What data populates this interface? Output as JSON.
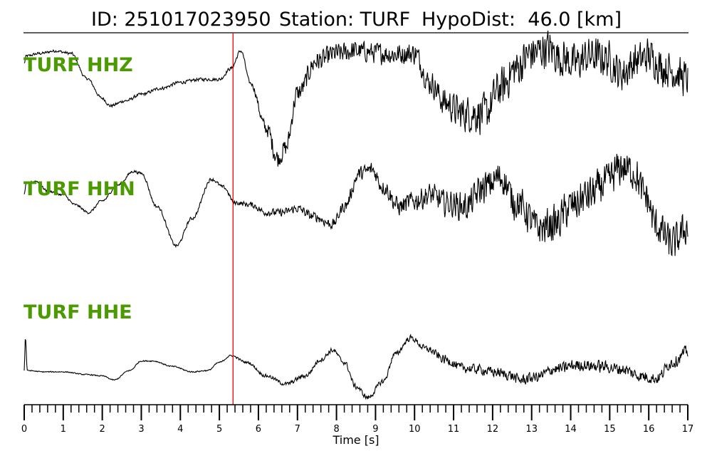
{
  "header": {
    "id_text": "ID: 251017023950",
    "station_text": "Station: TURF",
    "dist_text": "HypoDist:",
    "dist_value_text": "46.0 [km]"
  },
  "colors": {
    "trace": "#000000",
    "label": "#4a9a00",
    "pick": "#ff0000"
  },
  "chart_data": {
    "type": "line",
    "title": "ID: 251017023950   Station: TURF   HypoDist:    46.0 [km]",
    "xlabel": "Time [s]",
    "xlim": [
      0,
      17
    ],
    "major_ticks": [
      0,
      1,
      2,
      3,
      4,
      5,
      6,
      7,
      8,
      9,
      10,
      11,
      12,
      13,
      14,
      15,
      16,
      17
    ],
    "tick_labels": [
      "0",
      "1",
      "2",
      "3",
      "4",
      "5",
      "6",
      "7",
      "8",
      "9",
      "10",
      "11",
      "12",
      "13",
      "14",
      "15",
      "16",
      "17"
    ],
    "minor_tick_step": 0.2,
    "grid": false,
    "pick_time": 5.35,
    "series": [
      {
        "name": "TURF HHZ",
        "noise": [
          [
            0,
            0.03
          ],
          [
            5.8,
            0.04
          ],
          [
            6.3,
            0.22
          ],
          [
            7.5,
            0.22
          ],
          [
            10.3,
            0.25
          ],
          [
            11.5,
            0.45
          ],
          [
            17,
            0.4
          ]
        ],
        "x": [
          0,
          0.05,
          0.4,
          0.8,
          1.2,
          1.6,
          2.0,
          2.2,
          2.6,
          3.0,
          3.5,
          4.0,
          4.5,
          5.0,
          5.3,
          5.55,
          5.8,
          6.2,
          6.5,
          6.7,
          7.0,
          7.5,
          8.0,
          8.5,
          9.0,
          9.5,
          10.0,
          10.4,
          10.8,
          11.2,
          11.8,
          12.2,
          12.6,
          13.0,
          13.4,
          13.8,
          14.1,
          14.5,
          14.9,
          15.3,
          15.7,
          16.0,
          16.4,
          17.0
        ],
        "y": [
          0.7,
          0.85,
          0.9,
          0.95,
          0.9,
          0.4,
          0.0,
          -0.15,
          -0.05,
          0.08,
          0.2,
          0.32,
          0.38,
          0.38,
          0.6,
          0.95,
          0.3,
          -0.6,
          -1.2,
          -1.0,
          0.1,
          0.75,
          0.9,
          0.95,
          0.92,
          0.88,
          0.9,
          0.3,
          -0.1,
          -0.3,
          -0.3,
          0.2,
          0.6,
          0.9,
          1.0,
          0.8,
          0.7,
          0.85,
          0.8,
          0.5,
          0.75,
          0.85,
          0.6,
          0.4
        ]
      },
      {
        "name": "TURF HHN",
        "noise": [
          [
            0,
            0.03
          ],
          [
            5.2,
            0.05
          ],
          [
            6.2,
            0.1
          ],
          [
            8.0,
            0.15
          ],
          [
            10.0,
            0.3
          ],
          [
            11.8,
            0.45
          ],
          [
            14.5,
            0.55
          ],
          [
            17,
            0.5
          ]
        ],
        "x": [
          0,
          0.05,
          0.3,
          0.6,
          1.0,
          1.3,
          1.65,
          2.0,
          2.4,
          2.8,
          3.0,
          3.4,
          3.9,
          4.3,
          4.8,
          5.1,
          5.4,
          5.8,
          6.2,
          6.6,
          7.0,
          7.4,
          7.9,
          8.2,
          8.6,
          8.9,
          9.2,
          9.6,
          10.0,
          10.4,
          10.8,
          11.3,
          11.8,
          12.2,
          12.6,
          13.2,
          13.6,
          14.0,
          14.5,
          14.9,
          15.3,
          15.6,
          15.9,
          16.2,
          16.6,
          17.0
        ],
        "y": [
          0.3,
          0.6,
          0.65,
          0.4,
          0.3,
          0.05,
          -0.15,
          0.15,
          0.55,
          0.9,
          0.85,
          0.0,
          -1.0,
          -0.3,
          0.7,
          0.5,
          0.1,
          0.05,
          -0.15,
          -0.15,
          -0.05,
          -0.25,
          -0.45,
          0.0,
          0.85,
          0.95,
          0.5,
          0.0,
          0.15,
          0.3,
          0.1,
          0.0,
          0.5,
          0.75,
          0.1,
          -0.55,
          -0.45,
          0.0,
          0.3,
          0.6,
          1.0,
          0.9,
          0.3,
          -0.5,
          -0.95,
          -0.55
        ]
      },
      {
        "name": "TURF HHE",
        "noise": [
          [
            0,
            0.02
          ],
          [
            5.2,
            0.03
          ],
          [
            6.5,
            0.08
          ],
          [
            10.0,
            0.12
          ],
          [
            11.0,
            0.2
          ],
          [
            14.0,
            0.25
          ],
          [
            17,
            0.25
          ]
        ],
        "x": [
          0,
          0.03,
          0.08,
          0.5,
          1.0,
          1.6,
          2.0,
          2.3,
          2.7,
          3.0,
          3.3,
          3.8,
          4.3,
          4.7,
          5.0,
          5.3,
          5.7,
          6.2,
          6.7,
          7.2,
          7.6,
          7.9,
          8.2,
          8.5,
          8.8,
          9.2,
          9.5,
          9.9,
          10.3,
          10.8,
          11.2,
          11.6,
          12.0,
          12.4,
          12.7,
          13.1,
          13.6,
          14.2,
          14.8,
          15.3,
          15.8,
          16.2,
          16.6,
          17.0
        ],
        "y": [
          0.0,
          1.2,
          0.0,
          -0.05,
          -0.05,
          -0.15,
          -0.2,
          -0.35,
          0.0,
          0.35,
          0.35,
          0.15,
          -0.05,
          0.0,
          0.3,
          0.55,
          0.3,
          -0.2,
          -0.5,
          -0.2,
          0.4,
          0.75,
          0.3,
          -0.6,
          -1.0,
          -0.4,
          0.6,
          1.2,
          0.8,
          0.4,
          0.1,
          0.05,
          -0.05,
          -0.15,
          -0.35,
          -0.25,
          0.05,
          0.2,
          0.15,
          0.05,
          -0.2,
          -0.3,
          0.3,
          0.7
        ]
      }
    ]
  }
}
